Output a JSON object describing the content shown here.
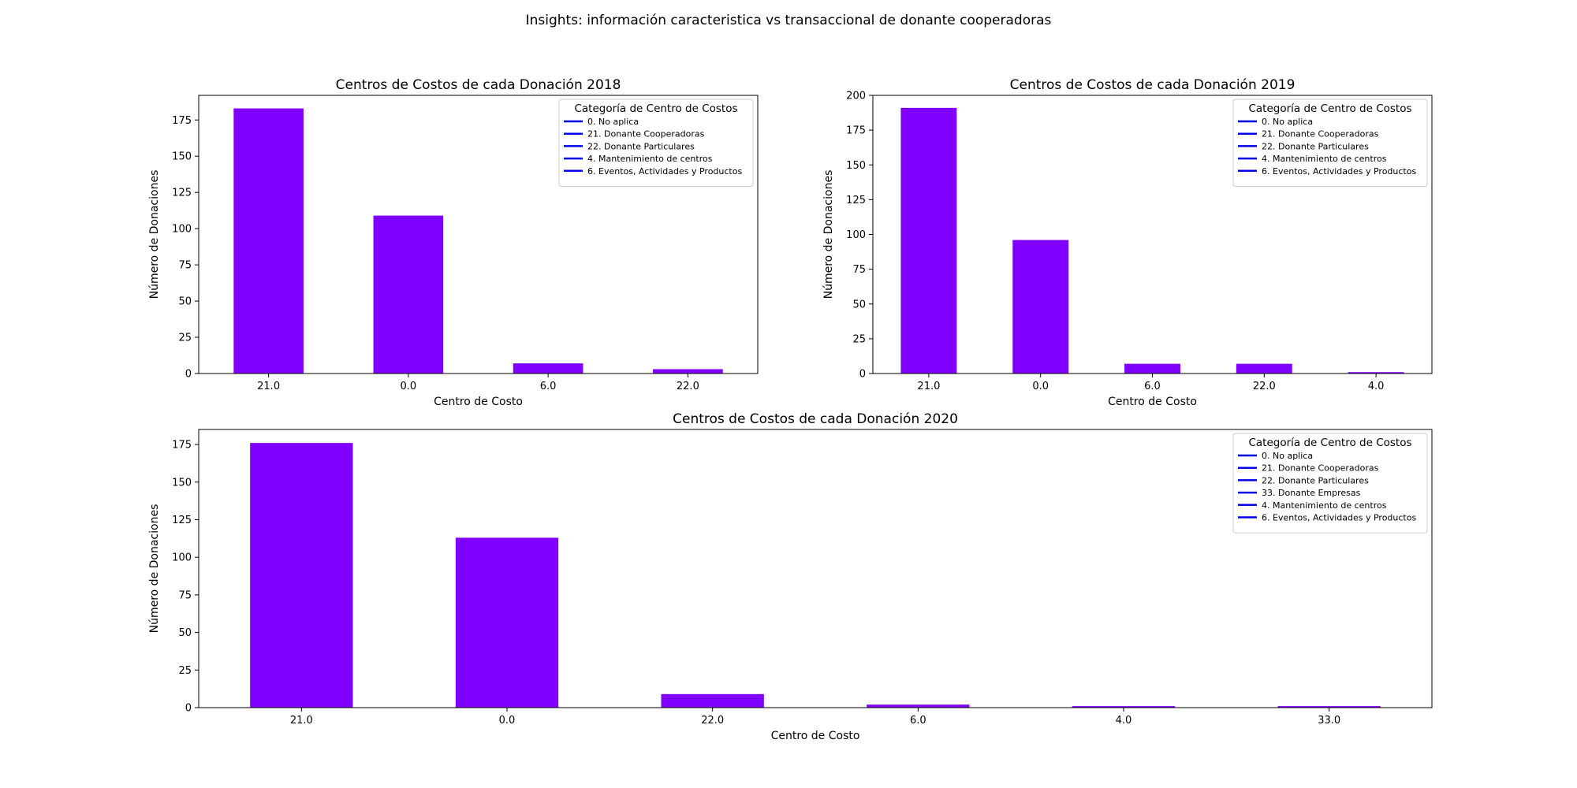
{
  "figure": {
    "suptitle": "Insights: información caracteristica vs transaccional de donante cooperadoras",
    "bar_color": "#8000ff",
    "legend_line_color": "#0000ee"
  },
  "chart_data": [
    {
      "type": "bar",
      "title": "Centros de Costos de cada Donación 2018",
      "xlabel": "Centro de Costo",
      "ylabel": "Número de Donaciones",
      "categories": [
        "21.0",
        "0.0",
        "6.0",
        "22.0"
      ],
      "values": [
        183,
        109,
        7,
        3
      ],
      "ylim": [
        0,
        192
      ],
      "yticks": [
        0,
        25,
        50,
        75,
        100,
        125,
        150,
        175
      ],
      "grid": false,
      "legend": {
        "title": "Categoría de Centro de Costos",
        "placement": "top-right",
        "entries": [
          "0. No aplica",
          "21. Donante Cooperadoras",
          "22. Donante Particulares",
          "4. Mantenimiento de centros",
          "6. Eventos, Actividades y Productos"
        ]
      }
    },
    {
      "type": "bar",
      "title": "Centros de Costos de cada Donación 2019",
      "xlabel": "Centro de Costo",
      "ylabel": "Número de Donaciones",
      "categories": [
        "21.0",
        "0.0",
        "6.0",
        "22.0",
        "4.0"
      ],
      "values": [
        191,
        96,
        7,
        7,
        1
      ],
      "ylim": [
        0,
        200
      ],
      "yticks": [
        0,
        25,
        50,
        75,
        100,
        125,
        150,
        175,
        200
      ],
      "grid": false,
      "legend": {
        "title": "Categoría de Centro de Costos",
        "placement": "top-right",
        "entries": [
          "0. No aplica",
          "21. Donante Cooperadoras",
          "22. Donante Particulares",
          "4. Mantenimiento de centros",
          "6. Eventos, Actividades y Productos"
        ]
      }
    },
    {
      "type": "bar",
      "title": "Centros de Costos de cada Donación 2020",
      "xlabel": "Centro de Costo",
      "ylabel": "Número de Donaciones",
      "categories": [
        "21.0",
        "0.0",
        "22.0",
        "6.0",
        "4.0",
        "33.0"
      ],
      "values": [
        176,
        113,
        9,
        2,
        1,
        1
      ],
      "ylim": [
        0,
        185
      ],
      "yticks": [
        0,
        25,
        50,
        75,
        100,
        125,
        150,
        175
      ],
      "grid": false,
      "legend": {
        "title": "Categoría de Centro de Costos",
        "placement": "top-right",
        "entries": [
          "0. No aplica",
          "21. Donante Cooperadoras",
          "22. Donante Particulares",
          "33. Donante Empresas",
          "4. Mantenimiento de centros",
          "6. Eventos, Actividades y Productos"
        ]
      }
    }
  ]
}
